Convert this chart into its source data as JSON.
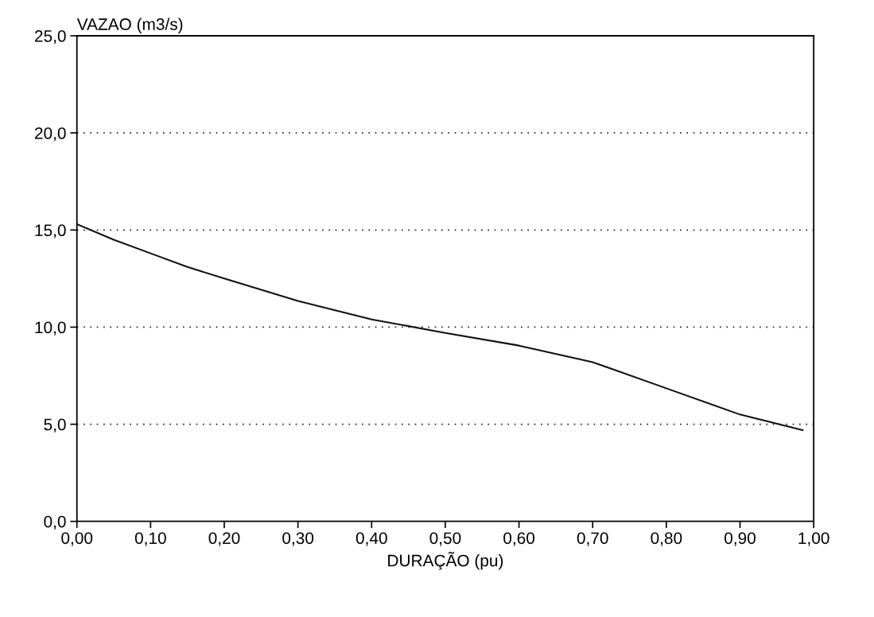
{
  "chart_data": {
    "type": "line",
    "ylabel": "VAZAO (m3/s)",
    "xlabel": "DURAÇÃO (pu)",
    "x": [
      0.0,
      0.05,
      0.1,
      0.15,
      0.2,
      0.3,
      0.4,
      0.5,
      0.6,
      0.7,
      0.8,
      0.9,
      0.985
    ],
    "series": [
      {
        "color": "#111111",
        "values": [
          15.3,
          14.5,
          13.8,
          13.1,
          12.5,
          11.35,
          10.4,
          9.7,
          9.05,
          8.2,
          6.85,
          5.5,
          4.7
        ]
      }
    ],
    "xlim": [
      0,
      1
    ],
    "ylim": [
      0,
      25
    ],
    "xticks": [
      {
        "value": 0,
        "label": "0,00"
      },
      {
        "value": 0.1,
        "label": "0,10"
      },
      {
        "value": 0.2,
        "label": "0,20"
      },
      {
        "value": 0.3,
        "label": "0,30"
      },
      {
        "value": 0.4,
        "label": "0,40"
      },
      {
        "value": 0.5,
        "label": "0,50"
      },
      {
        "value": 0.6,
        "label": "0,60"
      },
      {
        "value": 0.7,
        "label": "0,70"
      },
      {
        "value": 0.8,
        "label": "0,80"
      },
      {
        "value": 0.9,
        "label": "0,90"
      },
      {
        "value": 1,
        "label": "1,00"
      }
    ],
    "yticks": [
      {
        "value": 0,
        "label": "0,0"
      },
      {
        "value": 5,
        "label": "5,0"
      },
      {
        "value": 10,
        "label": "10,0"
      },
      {
        "value": 15,
        "label": "15,0"
      },
      {
        "value": 20,
        "label": "20,0"
      },
      {
        "value": 25,
        "label": "25,0"
      }
    ],
    "grid": "y",
    "line_style": "solid",
    "marker": "none",
    "legend": false
  }
}
